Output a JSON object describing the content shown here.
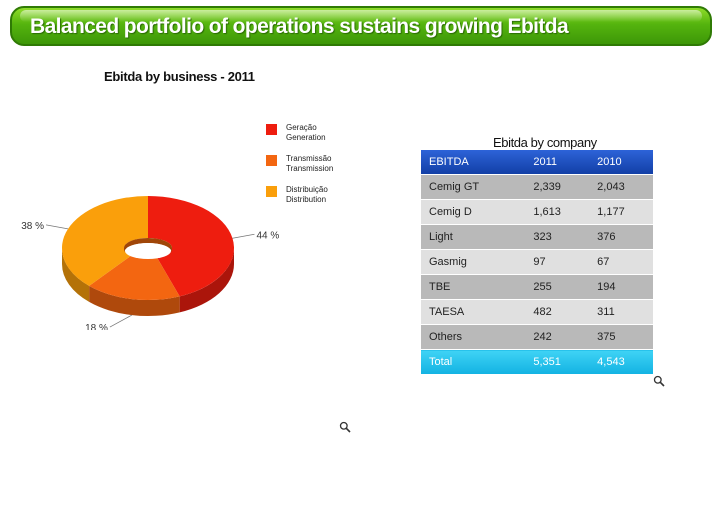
{
  "header": {
    "title": "Balanced portfolio of operations sustains growing Ebitda"
  },
  "chart_data": {
    "type": "pie",
    "title": "Ebitda by business - 2011",
    "slices": [
      {
        "label": "Geração",
        "label_en": "Generation",
        "value": 44,
        "display": "44 %",
        "color": "#ee1d0f"
      },
      {
        "label": "Transmissão",
        "label_en": "Transmission",
        "value": 18,
        "display": "18 %",
        "color": "#f36611"
      },
      {
        "label": "Distribuição",
        "label_en": "Distribution",
        "value": 38,
        "display": "38 %",
        "color": "#fa9f0b"
      }
    ],
    "legend_position": "top-right",
    "donut": true,
    "three_d": true
  },
  "table": {
    "title": "Ebitda by company",
    "columns": [
      "EBITDA",
      "2011",
      "2010"
    ],
    "rows": [
      [
        "Cemig GT",
        "2,339",
        "2,043"
      ],
      [
        "Cemig D",
        "1,613",
        "1,177"
      ],
      [
        "Light",
        "323",
        "376"
      ],
      [
        "Gasmig",
        "97",
        "67"
      ],
      [
        "TBE",
        "255",
        "194"
      ],
      [
        "TAESA",
        "482",
        "311"
      ],
      [
        "Others",
        "242",
        "375"
      ]
    ],
    "total": [
      "Total",
      "5,351",
      "4,543"
    ]
  },
  "icons": {
    "zoom": "magnifier-icon"
  }
}
